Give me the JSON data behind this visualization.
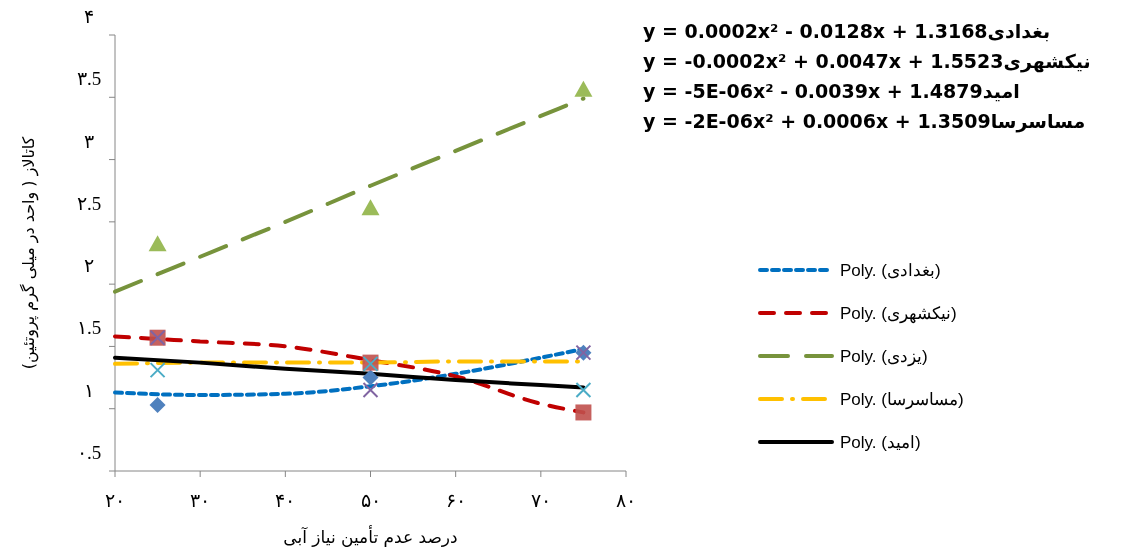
{
  "chart_data": {
    "type": "scatter",
    "xlabel": "درصد عدم تأمین نیاز آبی",
    "ylabel": "کاتالاز ( واحد در میلی گرم پروتئین)",
    "xlim": [
      20,
      80
    ],
    "xticks": [
      {
        "value": 20,
        "label": "۲۰"
      },
      {
        "value": 30,
        "label": "۳۰"
      },
      {
        "value": 40,
        "label": "۴۰"
      },
      {
        "value": 50,
        "label": "۵۰"
      },
      {
        "value": 60,
        "label": "۶۰"
      },
      {
        "value": 70,
        "label": "۷۰"
      },
      {
        "value": 80,
        "label": "۸۰"
      }
    ],
    "ylim": [
      0.5,
      4
    ],
    "yticks": [
      {
        "value": 0.5,
        "label": "۰.5"
      },
      {
        "value": 1,
        "label": "۱"
      },
      {
        "value": 1.5,
        "label": "۱.5"
      },
      {
        "value": 2,
        "label": "۲"
      },
      {
        "value": 2.5,
        "label": "۲.5"
      },
      {
        "value": 3,
        "label": "۳"
      },
      {
        "value": 3.5,
        "label": "۳.5"
      },
      {
        "value": 4,
        "label": "۴"
      }
    ],
    "grid": false,
    "legend": "right",
    "annotations": [
      "y = 0.0002x² - 0.0128x + 1.3168بغدادی",
      "y = -0.0002x² + 0.0047x + 1.5523نیکشهری",
      "y = -5E-06x² - 0.0039x + 1.4879امید",
      "y = -2E-06x² + 0.0006x + 1.3509مساسرسا"
    ],
    "series": [
      {
        "marker": "diamond",
        "color": "#4f81bd",
        "x": [
          25,
          50,
          75
        ],
        "values": [
          1.03,
          1.25,
          1.45
        ]
      },
      {
        "marker": "square",
        "color": "#c0504d",
        "x": [
          25,
          50,
          75
        ],
        "values": [
          1.57,
          1.37,
          0.97
        ]
      },
      {
        "marker": "triangle",
        "color": "#9bbb59",
        "x": [
          25,
          50,
          75
        ],
        "values": [
          2.32,
          2.61,
          3.56
        ]
      },
      {
        "marker": "cross",
        "color": "#8064a2",
        "x": [
          25,
          50,
          75
        ],
        "values": [
          1.57,
          1.15,
          1.45
        ]
      },
      {
        "marker": "cross",
        "color": "#4bacc6",
        "x": [
          25,
          50,
          75
        ],
        "values": [
          1.31,
          1.36,
          1.15
        ]
      },
      {
        "type": "line",
        "name": "Poly. (بغدادی)",
        "color": "#0070c0",
        "line_style": "dashed",
        "x": [
          20,
          30,
          40,
          50,
          60,
          70,
          75
        ],
        "values": [
          1.13,
          1.11,
          1.12,
          1.18,
          1.28,
          1.41,
          1.48
        ]
      },
      {
        "type": "line",
        "name": "Poly. (نیکشهری)",
        "color": "#c00000",
        "line_style": "dashed",
        "x": [
          20,
          30,
          40,
          50,
          60,
          70,
          75
        ],
        "values": [
          1.58,
          1.54,
          1.5,
          1.39,
          1.26,
          1.04,
          0.97
        ]
      },
      {
        "type": "line",
        "name": "Poly. (یزدی)",
        "color": "#77933c",
        "line_style": "dashed",
        "x": [
          20,
          30,
          40,
          50,
          60,
          70,
          75
        ],
        "values": [
          1.94,
          2.22,
          2.5,
          2.79,
          3.07,
          3.35,
          3.49
        ]
      },
      {
        "type": "line",
        "name": "Poly. (مساسرسا)",
        "color": "#ffc000",
        "line_style": "dashed",
        "x": [
          20,
          30,
          40,
          50,
          60,
          70,
          75
        ],
        "values": [
          1.36,
          1.37,
          1.37,
          1.37,
          1.38,
          1.38,
          1.38
        ]
      },
      {
        "type": "line",
        "name": "Poly. (امید)",
        "color": "#000000",
        "line_style": "solid",
        "x": [
          20,
          30,
          40,
          50,
          60,
          70,
          75
        ],
        "values": [
          1.41,
          1.37,
          1.32,
          1.28,
          1.23,
          1.19,
          1.17
        ]
      }
    ]
  }
}
